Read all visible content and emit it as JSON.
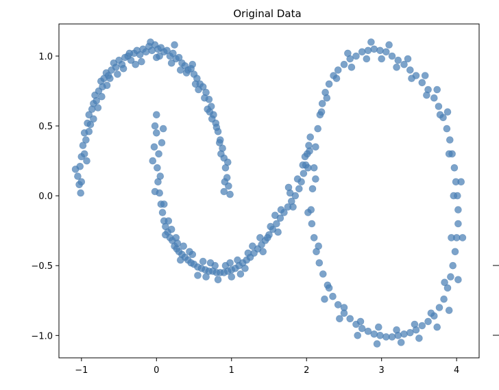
{
  "chart_data": {
    "type": "scatter",
    "title": "Original Data",
    "xlabel": "",
    "ylabel": "",
    "xlim": [
      -1.3,
      4.3
    ],
    "ylim": [
      -1.16,
      1.23
    ],
    "xticks": [
      -1,
      0,
      1,
      2,
      3,
      4
    ],
    "xtick_labels": [
      "−1",
      "0",
      "1",
      "2",
      "3",
      "4"
    ],
    "yticks": [
      -1.0,
      -0.5,
      0.0,
      0.5,
      1.0
    ],
    "ytick_labels": [
      "−1.0",
      "−0.5",
      "0.0",
      "0.5",
      "1.0"
    ],
    "grid": false,
    "colors": {
      "points": "#4a7fb5"
    },
    "series": [
      {
        "points": [
          [
            -1.05,
            0.14
          ],
          [
            -1.03,
            0.08
          ],
          [
            -1.02,
            0.21
          ],
          [
            -1.0,
            0.28
          ],
          [
            -0.98,
            0.36
          ],
          [
            -0.96,
            0.45
          ],
          [
            -0.94,
            0.4
          ],
          [
            -0.92,
            0.52
          ],
          [
            -0.9,
            0.58
          ],
          [
            -0.88,
            0.51
          ],
          [
            -0.86,
            0.62
          ],
          [
            -0.84,
            0.66
          ],
          [
            -0.82,
            0.72
          ],
          [
            -0.8,
            0.68
          ],
          [
            -0.77,
            0.75
          ],
          [
            -0.74,
            0.82
          ],
          [
            -0.72,
            0.78
          ],
          [
            -0.7,
            0.84
          ],
          [
            -0.67,
            0.88
          ],
          [
            -0.64,
            0.86
          ],
          [
            -0.6,
            0.9
          ],
          [
            -0.57,
            0.95
          ],
          [
            -0.54,
            0.92
          ],
          [
            -0.5,
            0.97
          ],
          [
            -0.46,
            0.94
          ],
          [
            -0.42,
            0.99
          ],
          [
            -0.38,
            1.0
          ],
          [
            -0.34,
            0.97
          ],
          [
            -0.3,
            1.02
          ],
          [
            -0.26,
            1.04
          ],
          [
            -0.22,
            1.01
          ],
          [
            -0.18,
            1.05
          ],
          [
            -0.14,
            1.03
          ],
          [
            -0.1,
            1.07
          ],
          [
            -0.06,
            1.04
          ],
          [
            -0.02,
            1.08
          ],
          [
            0.02,
            1.05
          ],
          [
            0.06,
            1.06
          ],
          [
            0.1,
            1.03
          ],
          [
            0.14,
            1.04
          ],
          [
            0.18,
            1.0
          ],
          [
            0.22,
            1.02
          ],
          [
            0.26,
            0.98
          ],
          [
            0.3,
            0.99
          ],
          [
            0.34,
            0.95
          ],
          [
            0.38,
            0.93
          ],
          [
            0.42,
            0.9
          ],
          [
            0.46,
            0.91
          ],
          [
            0.5,
            0.87
          ],
          [
            0.54,
            0.84
          ],
          [
            0.58,
            0.8
          ],
          [
            0.62,
            0.78
          ],
          [
            0.66,
            0.74
          ],
          [
            0.7,
            0.69
          ],
          [
            0.73,
            0.64
          ],
          [
            0.76,
            0.58
          ],
          [
            0.79,
            0.52
          ],
          [
            0.82,
            0.46
          ],
          [
            0.85,
            0.4
          ],
          [
            0.88,
            0.34
          ],
          [
            0.9,
            0.27
          ],
          [
            0.92,
            0.2
          ],
          [
            0.94,
            0.13
          ],
          [
            0.96,
            0.07
          ],
          [
            0.98,
            0.01
          ],
          [
            -1.0,
            0.1
          ],
          [
            -0.96,
            0.3
          ],
          [
            -0.9,
            0.46
          ],
          [
            -0.78,
            0.63
          ],
          [
            -0.62,
            0.84
          ],
          [
            -0.44,
            0.91
          ],
          [
            -0.2,
            0.96
          ],
          [
            0.0,
            0.99
          ],
          [
            0.2,
            0.95
          ],
          [
            0.4,
            0.88
          ],
          [
            0.56,
            0.76
          ],
          [
            0.68,
            0.62
          ],
          [
            0.8,
            0.49
          ],
          [
            0.86,
            0.3
          ],
          [
            0.91,
            0.1
          ],
          [
            -1.08,
            0.19
          ],
          [
            -0.84,
            0.55
          ],
          [
            -0.66,
            0.79
          ],
          [
            -0.36,
            1.02
          ],
          [
            -0.08,
            1.1
          ],
          [
            0.24,
            1.08
          ],
          [
            0.48,
            0.94
          ],
          [
            0.64,
            0.7
          ],
          [
            0.74,
            0.55
          ],
          [
            0.84,
            0.38
          ],
          [
            0.9,
            0.03
          ],
          [
            0.95,
            0.24
          ],
          [
            -1.01,
            0.02
          ],
          [
            -0.93,
            0.25
          ],
          [
            -0.73,
            0.71
          ],
          [
            -0.52,
            0.87
          ],
          [
            -0.28,
            0.94
          ],
          [
            0.04,
            1.0
          ],
          [
            0.32,
            0.9
          ],
          [
            0.52,
            0.8
          ],
          [
            0.71,
            0.6
          ]
        ]
      },
      {
        "points": [
          [
            -0.05,
            0.25
          ],
          [
            -0.03,
            0.35
          ],
          [
            -0.02,
            0.5
          ],
          [
            0.0,
            0.58
          ],
          [
            0.01,
            0.2
          ],
          [
            0.02,
            0.1
          ],
          [
            0.04,
            0.02
          ],
          [
            0.06,
            -0.06
          ],
          [
            0.08,
            -0.12
          ],
          [
            0.1,
            -0.18
          ],
          [
            0.12,
            -0.22
          ],
          [
            0.15,
            -0.26
          ],
          [
            0.18,
            -0.3
          ],
          [
            0.21,
            -0.32
          ],
          [
            0.24,
            -0.36
          ],
          [
            0.27,
            -0.38
          ],
          [
            0.3,
            -0.4
          ],
          [
            0.34,
            -0.42
          ],
          [
            0.38,
            -0.44
          ],
          [
            0.42,
            -0.46
          ],
          [
            0.46,
            -0.48
          ],
          [
            0.5,
            -0.49
          ],
          [
            0.55,
            -0.51
          ],
          [
            0.6,
            -0.52
          ],
          [
            0.65,
            -0.53
          ],
          [
            0.7,
            -0.54
          ],
          [
            0.75,
            -0.54
          ],
          [
            0.8,
            -0.55
          ],
          [
            0.85,
            -0.55
          ],
          [
            0.9,
            -0.55
          ],
          [
            0.95,
            -0.54
          ],
          [
            1.0,
            -0.53
          ],
          [
            1.05,
            -0.52
          ],
          [
            1.1,
            -0.5
          ],
          [
            1.15,
            -0.48
          ],
          [
            1.2,
            -0.46
          ],
          [
            1.25,
            -0.44
          ],
          [
            1.3,
            -0.41
          ],
          [
            1.35,
            -0.38
          ],
          [
            1.4,
            -0.35
          ],
          [
            1.45,
            -0.32
          ],
          [
            1.5,
            -0.28
          ],
          [
            1.55,
            -0.24
          ],
          [
            1.6,
            -0.2
          ],
          [
            1.65,
            -0.16
          ],
          [
            1.7,
            -0.12
          ],
          [
            1.75,
            -0.08
          ],
          [
            1.8,
            -0.04
          ],
          [
            1.85,
            0.0
          ],
          [
            1.9,
            0.05
          ],
          [
            1.93,
            0.1
          ],
          [
            1.96,
            0.16
          ],
          [
            1.99,
            0.22
          ],
          [
            2.01,
            0.3
          ],
          [
            2.03,
            0.36
          ],
          [
            2.05,
            0.42
          ],
          [
            0.0,
            0.45
          ],
          [
            0.03,
            0.3
          ],
          [
            0.05,
            0.14
          ],
          [
            0.1,
            -0.06
          ],
          [
            0.16,
            -0.18
          ],
          [
            0.26,
            -0.3
          ],
          [
            0.36,
            -0.36
          ],
          [
            0.48,
            -0.42
          ],
          [
            0.62,
            -0.47
          ],
          [
            0.78,
            -0.5
          ],
          [
            0.92,
            -0.5
          ],
          [
            1.08,
            -0.46
          ],
          [
            1.22,
            -0.41
          ],
          [
            1.38,
            -0.3
          ],
          [
            1.52,
            -0.22
          ],
          [
            1.66,
            -0.1
          ],
          [
            1.78,
            0.02
          ],
          [
            1.88,
            0.12
          ],
          [
            1.98,
            0.28
          ],
          [
            0.07,
            0.38
          ],
          [
            0.12,
            -0.28
          ],
          [
            0.32,
            -0.46
          ],
          [
            0.55,
            -0.57
          ],
          [
            0.82,
            -0.6
          ],
          [
            1.0,
            -0.58
          ],
          [
            1.18,
            -0.52
          ],
          [
            1.42,
            -0.4
          ],
          [
            1.62,
            -0.26
          ],
          [
            1.82,
            -0.08
          ],
          [
            2.02,
            0.2
          ],
          [
            -0.02,
            0.03
          ],
          [
            0.2,
            -0.24
          ],
          [
            0.44,
            -0.4
          ],
          [
            0.72,
            -0.48
          ],
          [
            0.98,
            -0.48
          ],
          [
            1.28,
            -0.36
          ],
          [
            1.58,
            -0.14
          ],
          [
            1.76,
            0.06
          ],
          [
            1.95,
            0.22
          ],
          [
            0.09,
            0.48
          ],
          [
            0.28,
            -0.34
          ],
          [
            0.66,
            -0.58
          ],
          [
            1.12,
            -0.56
          ],
          [
            1.48,
            -0.3
          ]
        ]
      },
      {
        "points": [
          [
            2.08,
            0.05
          ],
          [
            2.1,
            0.2
          ],
          [
            2.12,
            0.35
          ],
          [
            2.15,
            0.48
          ],
          [
            2.18,
            0.58
          ],
          [
            2.21,
            0.66
          ],
          [
            2.25,
            0.74
          ],
          [
            2.3,
            0.8
          ],
          [
            2.36,
            0.86
          ],
          [
            2.42,
            0.9
          ],
          [
            2.5,
            0.94
          ],
          [
            2.58,
            0.98
          ],
          [
            2.66,
            1.0
          ],
          [
            2.74,
            1.03
          ],
          [
            2.82,
            1.04
          ],
          [
            2.9,
            1.05
          ],
          [
            2.98,
            1.04
          ],
          [
            3.06,
            1.03
          ],
          [
            3.14,
            1.0
          ],
          [
            3.22,
            0.97
          ],
          [
            3.3,
            0.94
          ],
          [
            3.38,
            0.9
          ],
          [
            3.46,
            0.86
          ],
          [
            3.54,
            0.81
          ],
          [
            3.62,
            0.76
          ],
          [
            3.7,
            0.7
          ],
          [
            3.76,
            0.64
          ],
          [
            3.82,
            0.56
          ],
          [
            3.87,
            0.48
          ],
          [
            3.91,
            0.4
          ],
          [
            3.94,
            0.3
          ],
          [
            3.97,
            0.2
          ],
          [
            3.99,
            0.1
          ],
          [
            4.01,
            0.0
          ],
          [
            4.02,
            -0.1
          ],
          [
            4.02,
            -0.2
          ],
          [
            4.0,
            -0.3
          ],
          [
            3.98,
            -0.4
          ],
          [
            3.95,
            -0.5
          ],
          [
            3.92,
            -0.58
          ],
          [
            3.88,
            -0.66
          ],
          [
            3.83,
            -0.74
          ],
          [
            3.77,
            -0.8
          ],
          [
            3.7,
            -0.86
          ],
          [
            3.62,
            -0.9
          ],
          [
            3.54,
            -0.93
          ],
          [
            3.46,
            -0.96
          ],
          [
            3.38,
            -0.98
          ],
          [
            3.3,
            -0.99
          ],
          [
            3.22,
            -1.0
          ],
          [
            3.14,
            -1.01
          ],
          [
            3.06,
            -1.01
          ],
          [
            2.98,
            -1.0
          ],
          [
            2.9,
            -0.99
          ],
          [
            2.82,
            -0.97
          ],
          [
            2.74,
            -0.95
          ],
          [
            2.66,
            -0.92
          ],
          [
            2.58,
            -0.88
          ],
          [
            2.5,
            -0.84
          ],
          [
            2.42,
            -0.78
          ],
          [
            2.35,
            -0.72
          ],
          [
            2.28,
            -0.64
          ],
          [
            2.22,
            -0.56
          ],
          [
            2.17,
            -0.48
          ],
          [
            2.13,
            -0.4
          ],
          [
            2.1,
            -0.3
          ],
          [
            2.07,
            -0.2
          ],
          [
            2.06,
            -0.1
          ],
          [
            2.2,
            0.6
          ],
          [
            2.4,
            0.84
          ],
          [
            2.6,
            0.92
          ],
          [
            2.8,
            0.98
          ],
          [
            3.0,
            0.98
          ],
          [
            3.2,
            0.92
          ],
          [
            3.4,
            0.84
          ],
          [
            3.6,
            0.72
          ],
          [
            3.78,
            0.58
          ],
          [
            3.9,
            0.3
          ],
          [
            3.96,
            0.0
          ],
          [
            3.93,
            -0.3
          ],
          [
            3.84,
            -0.62
          ],
          [
            3.66,
            -0.84
          ],
          [
            3.44,
            -0.92
          ],
          [
            3.2,
            -0.96
          ],
          [
            2.96,
            -0.94
          ],
          [
            2.72,
            -0.9
          ],
          [
            2.5,
            -0.8
          ],
          [
            2.3,
            -0.66
          ],
          [
            2.16,
            -0.36
          ],
          [
            2.12,
            0.12
          ],
          [
            2.27,
            0.7
          ],
          [
            2.55,
            1.02
          ],
          [
            2.86,
            1.1
          ],
          [
            3.1,
            1.08
          ],
          [
            3.35,
            0.98
          ],
          [
            3.58,
            0.86
          ],
          [
            3.74,
            0.76
          ],
          [
            3.88,
            0.6
          ],
          [
            4.06,
            0.1
          ],
          [
            4.08,
            -0.3
          ],
          [
            4.02,
            -0.6
          ],
          [
            3.9,
            -0.82
          ],
          [
            3.74,
            -0.94
          ],
          [
            3.5,
            -1.02
          ],
          [
            3.26,
            -1.05
          ],
          [
            2.94,
            -1.06
          ],
          [
            2.68,
            -1.0
          ],
          [
            2.44,
            -0.88
          ],
          [
            2.24,
            -0.74
          ],
          [
            2.02,
            -0.12
          ],
          [
            2.04,
            0.32
          ]
        ]
      }
    ]
  }
}
